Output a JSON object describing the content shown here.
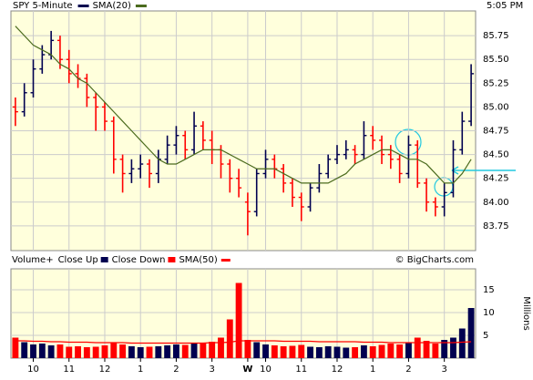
{
  "chart_data": {
    "type": "ohlc",
    "title": "SPY 5-Minute",
    "time": "5:05 PM",
    "credit": "© BigCharts.com",
    "up_color": "#000050",
    "down_color": "#ff0000",
    "categories": [
      null,
      null,
      "10",
      null,
      null,
      null,
      "11",
      null,
      null,
      null,
      "12",
      null,
      null,
      null,
      "1",
      null,
      null,
      null,
      "2",
      null,
      null,
      null,
      "3",
      null,
      null,
      null,
      "W",
      null,
      "10",
      null,
      null,
      null,
      "11",
      null,
      null,
      null,
      "12",
      null,
      null,
      null,
      "1",
      null,
      null,
      null,
      "2",
      null,
      null,
      null,
      "3",
      null,
      null,
      null
    ],
    "open": [
      85.0,
      84.95,
      85.15,
      85.4,
      85.55,
      85.7,
      85.5,
      85.35,
      85.3,
      85.1,
      85.0,
      84.85,
      84.45,
      84.3,
      84.35,
      84.4,
      84.3,
      84.45,
      84.6,
      84.7,
      84.55,
      84.8,
      84.65,
      84.55,
      84.4,
      84.25,
      84.0,
      83.9,
      84.3,
      84.45,
      84.35,
      84.2,
      84.05,
      83.95,
      84.15,
      84.3,
      84.45,
      84.5,
      84.55,
      84.5,
      84.7,
      84.65,
      84.5,
      84.45,
      84.3,
      84.6,
      84.2,
      84.0,
      83.95,
      84.1,
      84.55,
      84.85
    ],
    "high": [
      85.1,
      85.25,
      85.5,
      85.65,
      85.8,
      85.75,
      85.6,
      85.45,
      85.35,
      85.15,
      85.05,
      84.9,
      84.5,
      84.45,
      84.5,
      84.45,
      84.55,
      84.7,
      84.8,
      84.75,
      84.95,
      84.85,
      84.75,
      84.6,
      84.45,
      84.35,
      84.1,
      84.35,
      84.55,
      84.5,
      84.4,
      84.25,
      84.1,
      84.2,
      84.4,
      84.5,
      84.6,
      84.65,
      84.6,
      84.85,
      84.8,
      84.7,
      84.6,
      84.5,
      84.7,
      84.65,
      84.25,
      84.05,
      84.2,
      84.65,
      84.95,
      85.45
    ],
    "low": [
      84.8,
      84.9,
      85.1,
      85.35,
      85.5,
      85.4,
      85.25,
      85.2,
      85.0,
      84.75,
      84.75,
      84.3,
      84.1,
      84.2,
      84.25,
      84.15,
      84.2,
      84.4,
      84.5,
      84.45,
      84.5,
      84.55,
      84.4,
      84.25,
      84.1,
      84.05,
      83.65,
      83.85,
      84.25,
      84.25,
      84.1,
      83.95,
      83.8,
      83.9,
      84.1,
      84.25,
      84.4,
      84.45,
      84.4,
      84.45,
      84.55,
      84.4,
      84.35,
      84.2,
      84.25,
      84.15,
      83.9,
      83.85,
      83.85,
      84.05,
      84.5,
      84.8
    ],
    "close": [
      84.95,
      85.15,
      85.4,
      85.55,
      85.7,
      85.5,
      85.35,
      85.3,
      85.1,
      85.0,
      84.85,
      84.45,
      84.3,
      84.35,
      84.4,
      84.3,
      84.45,
      84.6,
      84.7,
      84.55,
      84.8,
      84.65,
      84.55,
      84.4,
      84.25,
      84.15,
      83.9,
      84.3,
      84.45,
      84.35,
      84.2,
      84.05,
      83.95,
      84.15,
      84.3,
      84.45,
      84.5,
      84.55,
      84.5,
      84.7,
      84.65,
      84.5,
      84.45,
      84.3,
      84.6,
      84.2,
      84.0,
      83.95,
      84.1,
      84.55,
      84.85,
      85.35
    ],
    "sma": {
      "name": "SMA(20)",
      "color": "#4b6b1e",
      "values": [
        85.85,
        85.75,
        85.65,
        85.6,
        85.55,
        85.45,
        85.4,
        85.3,
        85.25,
        85.15,
        85.05,
        84.95,
        84.85,
        84.75,
        84.65,
        84.55,
        84.45,
        84.4,
        84.4,
        84.45,
        84.5,
        84.55,
        84.55,
        84.55,
        84.5,
        84.45,
        84.4,
        84.35,
        84.35,
        84.35,
        84.3,
        84.25,
        84.2,
        84.2,
        84.2,
        84.2,
        84.25,
        84.3,
        84.4,
        84.45,
        84.5,
        84.55,
        84.55,
        84.5,
        84.45,
        84.45,
        84.4,
        84.3,
        84.2,
        84.2,
        84.3,
        84.45
      ]
    },
    "ylim": [
      83.49,
      86.01
    ],
    "yticks": [
      83.75,
      {
        "value": 84.0,
        "label": "84.00"
      },
      84.25,
      {
        "value": 84.5,
        "label": "84.50"
      },
      84.75,
      {
        "value": 85.0,
        "label": "85.00"
      },
      85.25,
      {
        "value": 85.5,
        "label": "85.50"
      },
      85.75
    ],
    "grid": true,
    "volume": {
      "label": "Volume+",
      "up_label": "Close Up",
      "down_label": "Close Down",
      "axis_label": "Millions",
      "values": [
        4.5,
        3.5,
        3.0,
        3.2,
        2.8,
        3.0,
        2.5,
        2.6,
        2.4,
        2.5,
        2.8,
        3.5,
        3.0,
        2.6,
        2.4,
        2.5,
        2.6,
        2.8,
        3.0,
        2.9,
        3.2,
        3.4,
        3.6,
        4.5,
        8.5,
        16.5,
        4.0,
        3.5,
        3.0,
        2.8,
        2.6,
        2.7,
        2.9,
        2.5,
        2.4,
        2.6,
        2.5,
        2.3,
        2.4,
        2.8,
        2.6,
        2.9,
        3.2,
        3.0,
        3.5,
        4.5,
        3.8,
        3.2,
        4.0,
        4.5,
        6.5,
        11.0
      ],
      "sma": {
        "name": "SMA(50)",
        "color": "#ff0000",
        "values": [
          3.8,
          3.8,
          3.7,
          3.7,
          3.6,
          3.6,
          3.5,
          3.5,
          3.5,
          3.4,
          3.4,
          3.4,
          3.4,
          3.3,
          3.3,
          3.3,
          3.3,
          3.3,
          3.3,
          3.3,
          3.3,
          3.3,
          3.4,
          3.4,
          3.5,
          3.8,
          3.8,
          3.8,
          3.8,
          3.8,
          3.7,
          3.7,
          3.7,
          3.7,
          3.6,
          3.6,
          3.6,
          3.6,
          3.6,
          3.5,
          3.5,
          3.5,
          3.4,
          3.4,
          3.4,
          3.4,
          3.4,
          3.4,
          3.4,
          3.4,
          3.5,
          3.6
        ]
      },
      "ylim": [
        0,
        19.6
      ],
      "yticks": [
        5,
        10,
        15
      ]
    }
  }
}
